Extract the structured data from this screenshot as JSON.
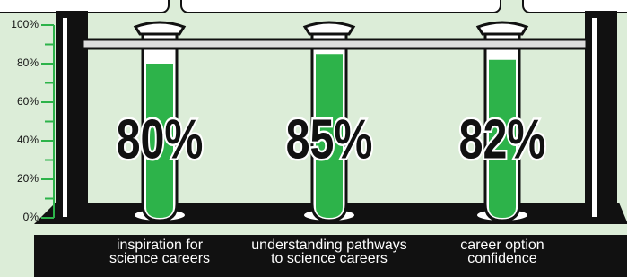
{
  "chart_data": {
    "type": "bar",
    "categories": [
      "inspiration for science careers",
      "understanding pathways to science careers",
      "career option confidence"
    ],
    "values": [
      80,
      85,
      82
    ],
    "value_labels": [
      "80%",
      "85%",
      "82%"
    ],
    "color": "#2db34a",
    "ylim": [
      0,
      100
    ],
    "yticks": [
      {
        "value": 0,
        "label": "0%"
      },
      {
        "value": 20,
        "label": "20%"
      },
      {
        "value": 40,
        "label": "40%"
      },
      {
        "value": 60,
        "label": "60%"
      },
      {
        "value": 80,
        "label": "80%"
      },
      {
        "value": 100,
        "label": "100%"
      }
    ],
    "yminorticks": [
      10,
      30,
      50,
      70,
      90
    ]
  }
}
